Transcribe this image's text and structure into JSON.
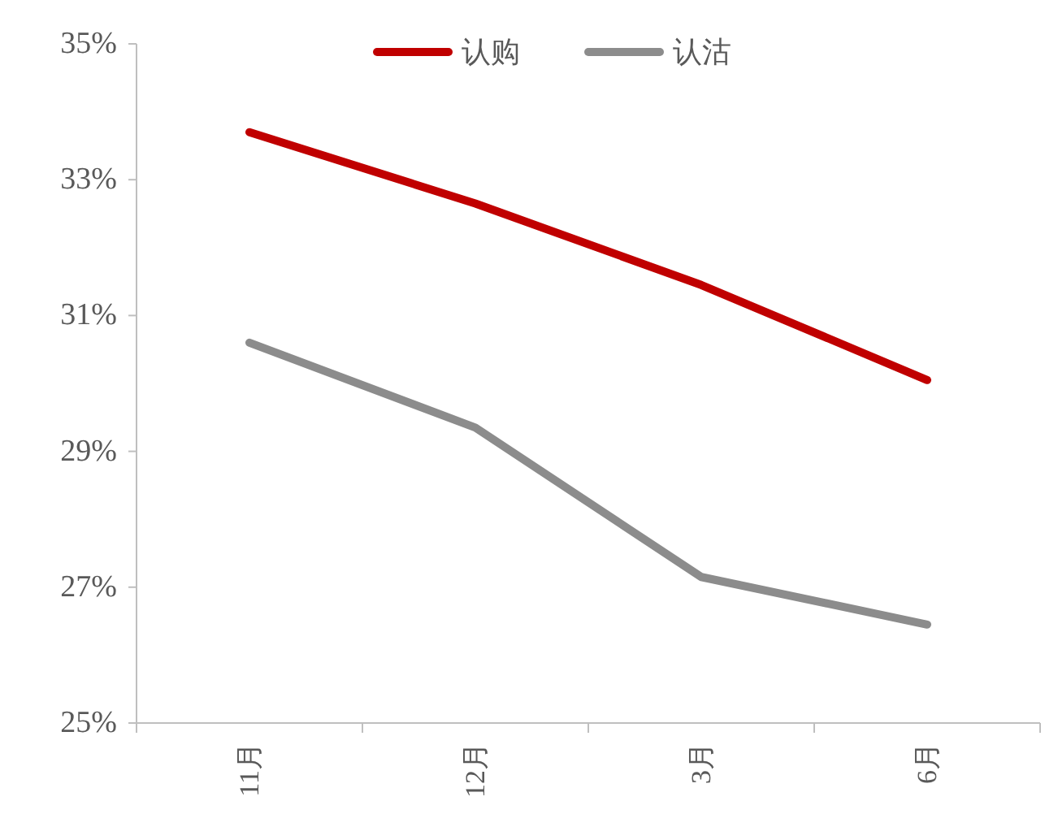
{
  "chart_data": {
    "type": "line",
    "categories": [
      "11月",
      "12月",
      "3月",
      "6月"
    ],
    "series": [
      {
        "name": "认购",
        "color": "#c00000",
        "values": [
          33.7,
          32.65,
          31.45,
          30.05
        ]
      },
      {
        "name": "认沽",
        "color": "#8c8c8c",
        "values": [
          30.6,
          29.35,
          27.15,
          26.45
        ]
      }
    ],
    "ylim": [
      25,
      35
    ],
    "yticks": [
      {
        "value": 25,
        "label": "25%"
      },
      {
        "value": 27,
        "label": "27%"
      },
      {
        "value": 29,
        "label": "29%"
      },
      {
        "value": 31,
        "label": "31%"
      },
      {
        "value": 33,
        "label": "33%"
      },
      {
        "value": 35,
        "label": "35%"
      }
    ],
    "legend": "top",
    "grid": false,
    "marker": "none",
    "line_style": "solid"
  }
}
